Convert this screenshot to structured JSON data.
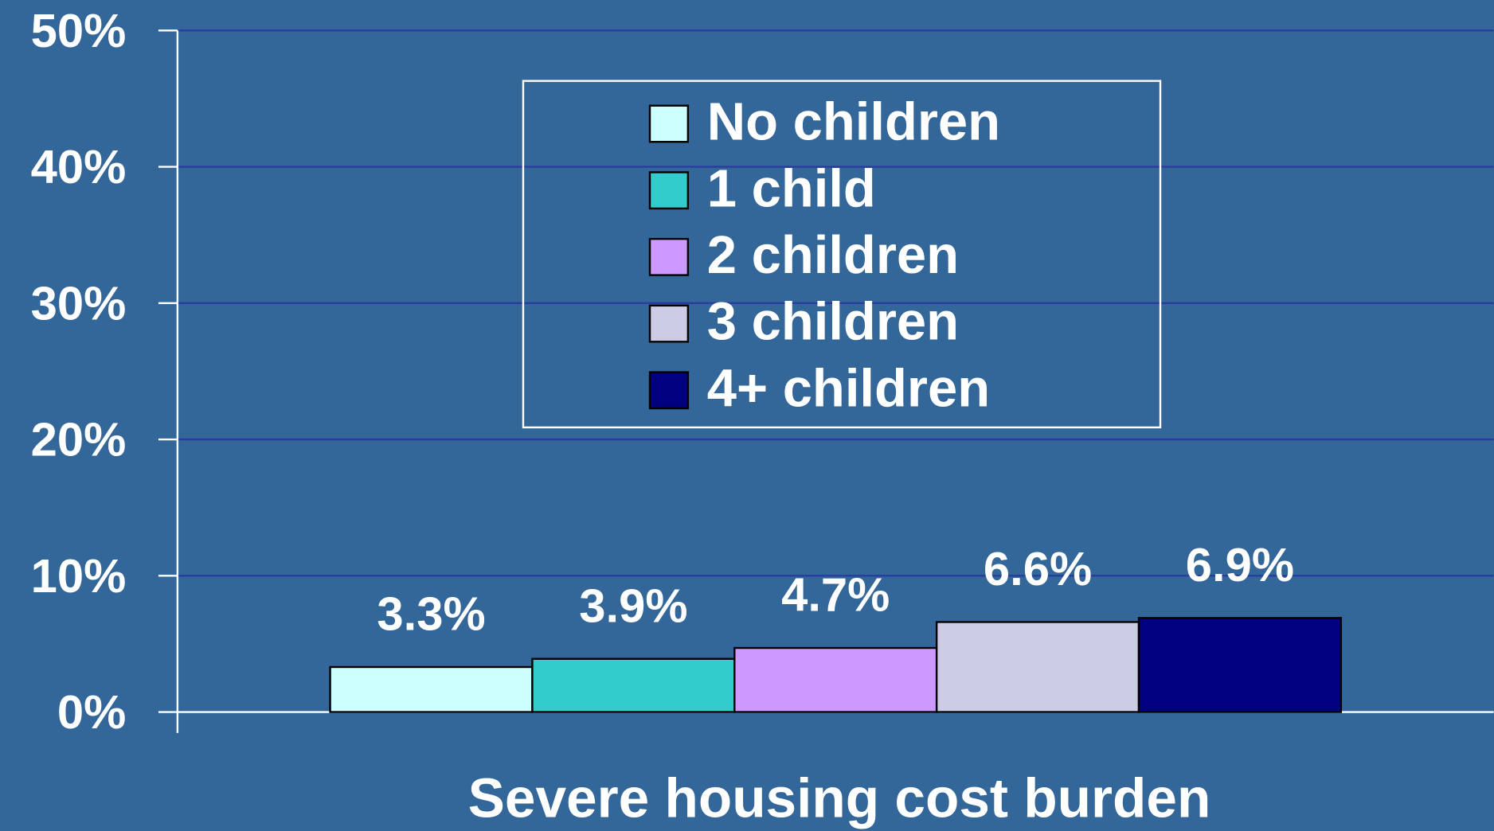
{
  "chart_data": {
    "type": "bar",
    "categories": [
      "Severe housing cost burden"
    ],
    "series": [
      {
        "name": "No children",
        "color": "#ccffff",
        "values": [
          3.3
        ],
        "value_labels": [
          "3.3%"
        ]
      },
      {
        "name": "1 child",
        "color": "#33cccc",
        "values": [
          3.9
        ],
        "value_labels": [
          "3.9%"
        ]
      },
      {
        "name": "2 children",
        "color": "#cc99ff",
        "values": [
          4.7
        ],
        "value_labels": [
          "4.7%"
        ]
      },
      {
        "name": "3 children",
        "color": "#cccce6",
        "values": [
          6.6
        ],
        "value_labels": [
          "6.6%"
        ]
      },
      {
        "name": "4+ children",
        "color": "#000080",
        "values": [
          6.9
        ],
        "value_labels": [
          "6.9%"
        ]
      }
    ],
    "ylim": [
      0,
      50
    ],
    "yticks": [
      {
        "value": 0,
        "label": "0%"
      },
      {
        "value": 10,
        "label": "10%"
      },
      {
        "value": 20,
        "label": "20%"
      },
      {
        "value": 30,
        "label": "30%"
      },
      {
        "value": 40,
        "label": "40%"
      },
      {
        "value": 50,
        "label": "50%"
      }
    ],
    "grid": true,
    "legend": "top"
  }
}
